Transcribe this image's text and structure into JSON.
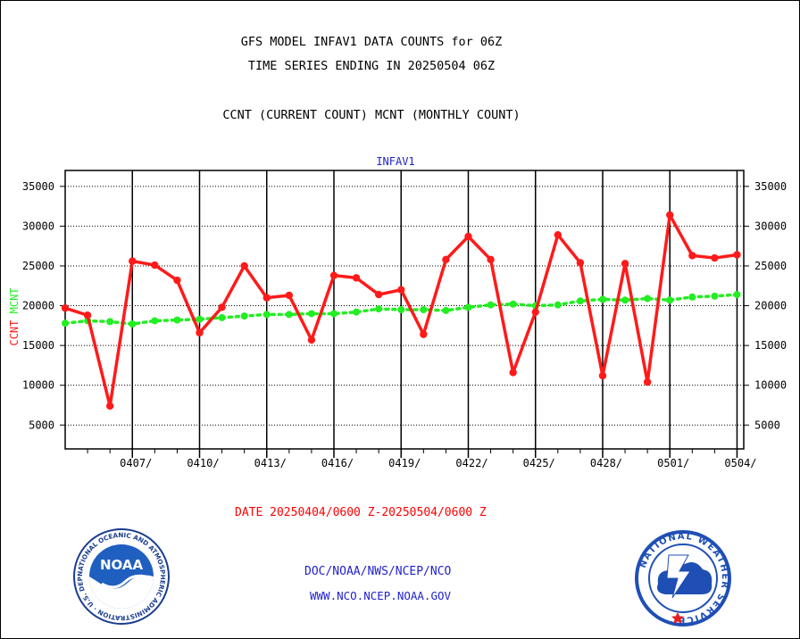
{
  "titles": {
    "line1": "GFS MODEL INFAV1 DATA COUNTS for 06Z",
    "line2": "TIME SERIES ENDING IN 20250504 06Z",
    "line3": "CCNT (CURRENT COUNT) MCNT (MONTHLY COUNT)"
  },
  "date_range": "DATE 20250404/0600 Z-20250504/0600 Z",
  "footer": {
    "line1": "DOC/NOAA/NWS/NCEP/NCO",
    "line2": "WWW.NCO.NCEP.NOAA.GOV"
  },
  "logos": {
    "noaa_text": "NOAA",
    "noaa_ring": "NATIONAL OCEANIC AND ATMOSPHERIC ADMINISTRATION · U.S. DEPARTMENT OF COMMERCE",
    "nws_ring": "NATIONAL WEATHER SERVICE"
  },
  "colors": {
    "ccnt": "#ff1a1a",
    "mcnt": "#22ee22",
    "plot_title": "#1f1fd0",
    "grid": "#000000"
  },
  "chart_data": {
    "type": "line",
    "title": "INFAV1",
    "ylabel_left": [
      "CCNT",
      "MCNT"
    ],
    "ylabel_colors": [
      "#ff1a1a",
      "#22ee22"
    ],
    "ylim": [
      2000,
      37000
    ],
    "yticks": [
      5000,
      10000,
      15000,
      20000,
      25000,
      30000,
      35000
    ],
    "xlim_days": [
      0,
      30.3
    ],
    "xticks": [
      {
        "day": 3,
        "label": "0407/"
      },
      {
        "day": 6,
        "label": "0410/"
      },
      {
        "day": 9,
        "label": "0413/"
      },
      {
        "day": 12,
        "label": "0416/"
      },
      {
        "day": 15,
        "label": "0419/"
      },
      {
        "day": 18,
        "label": "0422/"
      },
      {
        "day": 21,
        "label": "0425/"
      },
      {
        "day": 24,
        "label": "0428/"
      },
      {
        "day": 27,
        "label": "0501/"
      },
      {
        "day": 30,
        "label": "0504/"
      }
    ],
    "grid": true,
    "series": [
      {
        "name": "CCNT",
        "color": "#ff1a1a",
        "style": "solid",
        "points": [
          [
            0.0,
            19700
          ],
          [
            1.0,
            18800
          ],
          [
            2.0,
            7400
          ],
          [
            3.0,
            25600
          ],
          [
            4.0,
            25100
          ],
          [
            5.0,
            23200
          ],
          [
            6.0,
            16600
          ],
          [
            7.0,
            19800
          ],
          [
            8.0,
            25000
          ],
          [
            9.0,
            21000
          ],
          [
            10.0,
            21300
          ],
          [
            11.0,
            15700
          ],
          [
            12.0,
            23800
          ],
          [
            13.0,
            23500
          ],
          [
            14.0,
            21400
          ],
          [
            15.0,
            22000
          ],
          [
            16.0,
            16400
          ],
          [
            17.0,
            25800
          ],
          [
            18.0,
            28700
          ],
          [
            19.0,
            25800
          ],
          [
            20.0,
            11600
          ],
          [
            21.0,
            19200
          ],
          [
            22.0,
            28900
          ],
          [
            23.0,
            25400
          ],
          [
            24.0,
            11200
          ],
          [
            25.0,
            25300
          ],
          [
            26.0,
            10400
          ],
          [
            27.0,
            31400
          ],
          [
            28.0,
            26300
          ],
          [
            29.0,
            26000
          ],
          [
            30.0,
            26400
          ]
        ]
      },
      {
        "name": "MCNT",
        "color": "#22ee22",
        "style": "dotted",
        "points": [
          [
            0.0,
            17800
          ],
          [
            1.0,
            18100
          ],
          [
            2.0,
            18000
          ],
          [
            3.0,
            17700
          ],
          [
            4.0,
            18100
          ],
          [
            5.0,
            18200
          ],
          [
            6.0,
            18300
          ],
          [
            7.0,
            18500
          ],
          [
            8.0,
            18700
          ],
          [
            9.0,
            18900
          ],
          [
            10.0,
            18900
          ],
          [
            11.0,
            19000
          ],
          [
            12.0,
            19000
          ],
          [
            13.0,
            19200
          ],
          [
            14.0,
            19600
          ],
          [
            15.0,
            19500
          ],
          [
            16.0,
            19500
          ],
          [
            17.0,
            19400
          ],
          [
            18.0,
            19800
          ],
          [
            19.0,
            20100
          ],
          [
            20.0,
            20200
          ],
          [
            21.0,
            20000
          ],
          [
            22.0,
            20100
          ],
          [
            23.0,
            20600
          ],
          [
            24.0,
            20800
          ],
          [
            25.0,
            20700
          ],
          [
            26.0,
            20900
          ],
          [
            27.0,
            20700
          ],
          [
            28.0,
            21100
          ],
          [
            29.0,
            21200
          ],
          [
            30.0,
            21400
          ]
        ]
      }
    ]
  }
}
